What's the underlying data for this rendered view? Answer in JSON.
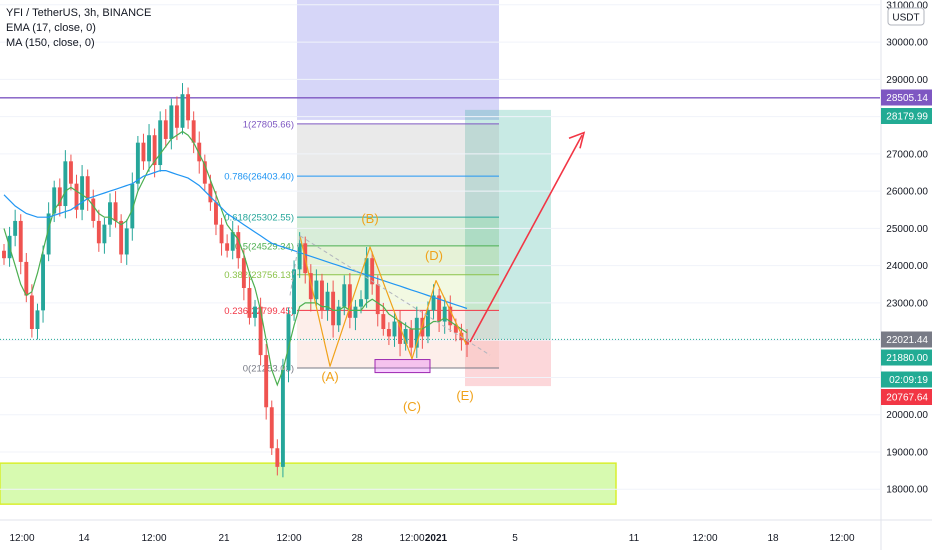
{
  "header": {
    "symbol_line": "YFI / TetherUS, 3h, BINANCE",
    "ema_line": "EMA (17, close, 0)",
    "ma_line": "MA (150, close, 0)"
  },
  "currency_button": "USDT",
  "chart_data": {
    "type": "candlestick",
    "title": "YFI / TetherUS, 3h, BINANCE",
    "ylim": [
      17300,
      31000
    ],
    "y_ticks": [
      18000,
      19000,
      20000,
      21000,
      22000,
      23000,
      24000,
      25000,
      26000,
      27000,
      28000,
      29000,
      30000,
      31000
    ],
    "y_tick_labels": [
      "18000.00",
      "19000.00",
      "20000.00",
      "21000.00",
      "22000.00",
      "23000.00",
      "24000.00",
      "25000.00",
      "26000.00",
      "27000.00",
      "28000.00",
      "29000.00",
      "30000.00",
      "31000.00"
    ],
    "x_tick_labels": [
      "12:00",
      "14",
      "12:00",
      "21",
      "12:00",
      "28",
      "12:00",
      "2021",
      "5",
      "11",
      "12:00",
      "18",
      "12:00"
    ],
    "legend": [
      "EMA (17, close, 0)",
      "MA (150, close, 0)"
    ],
    "horizontal_line": {
      "value": 28505.14,
      "color": "#7e57c2"
    },
    "price_labels": [
      {
        "text": "28505.14",
        "value": 28505.14,
        "color": "#7e57c2"
      },
      {
        "text": "28179.99",
        "value": 28179.99,
        "color": "#22ab94"
      },
      {
        "text": "22021.44",
        "value": 22021.44,
        "color": "#787b86"
      },
      {
        "text": "21880.00",
        "value": 21880.0,
        "color": "#22ab94"
      },
      {
        "text": "02:09:19",
        "value": 21480,
        "color": "#22ab94"
      },
      {
        "text": "20767.64",
        "value": 20767.64,
        "color": "#f23645"
      }
    ],
    "fibonacci": {
      "levels": [
        {
          "ratio": "1",
          "value": 27805.66,
          "label": "1(27805.66)",
          "color": "#7e57c2"
        },
        {
          "ratio": "0.786",
          "value": 26403.4,
          "label": "0.786(26403.40)",
          "color": "#2196f3"
        },
        {
          "ratio": "0.618",
          "value": 25302.55,
          "label": "0.618(25302.55)",
          "color": "#26a69a"
        },
        {
          "ratio": "0.5",
          "value": 24529.34,
          "label": "0.5(24529.34)",
          "color": "#4caf50"
        },
        {
          "ratio": "0.382",
          "value": 23756.13,
          "label": "0.382(23756.13)",
          "color": "#8bc34a"
        },
        {
          "ratio": "0.236",
          "value": 22799.45,
          "label": "0.236(22799.45)",
          "color": "#f23645"
        },
        {
          "ratio": "0",
          "value": 21253.03,
          "label": "0(21253.03)",
          "color": "#787b86"
        }
      ]
    },
    "wave_labels": [
      "(A)",
      "(B)",
      "(C)",
      "(D)",
      "(E)"
    ],
    "support_zone": [
      17600,
      18700
    ],
    "position": {
      "entry": 22021.44,
      "target": 28179.99,
      "stop": 20767.64
    },
    "series": [
      {
        "name": "YFI / TetherUS",
        "type": "candlestick",
        "up_color": "#26a69a",
        "down_color": "#ef5350",
        "close_path": [
          24200,
          24800,
          25200,
          24100,
          23200,
          22300,
          22800,
          24300,
          25400,
          26100,
          25600,
          26800,
          26200,
          25500,
          26400,
          25800,
          25200,
          24600,
          25100,
          25700,
          25200,
          24300,
          25000,
          26200,
          27300,
          26800,
          27500,
          26700,
          27900,
          27400,
          28300,
          27700,
          28600,
          27900,
          27300,
          26800,
          26200,
          25700,
          25100,
          24600,
          24400,
          24900,
          24200,
          23400,
          22600,
          22900,
          21600,
          20200,
          19100,
          18600,
          21200,
          22700,
          23900,
          24600,
          23800,
          23100,
          23600,
          22800,
          23300,
          22400,
          22900,
          23500,
          22600,
          22900,
          23100,
          24200,
          23500,
          22700,
          22300,
          22100,
          22500,
          21900,
          22300,
          21800,
          22600,
          22100,
          22800,
          23200,
          22500,
          22900,
          22400,
          22200,
          22000,
          21880
        ]
      },
      {
        "name": "EMA (17, close, 0)",
        "type": "line",
        "color": "#4caf50",
        "values": [
          25000,
          24500,
          24000,
          23500,
          23200,
          23300,
          23800,
          24400,
          25000,
          25500,
          25700,
          26000,
          26100,
          26000,
          25900,
          25800,
          25600,
          25400,
          25300,
          25300,
          25200,
          25100,
          25200,
          25500,
          26000,
          26300,
          26600,
          26800,
          27000,
          27200,
          27400,
          27500,
          27600,
          27500,
          27300,
          27000,
          26700,
          26300,
          25900,
          25500,
          25100,
          24900,
          24700,
          24300,
          23800,
          23400,
          22800,
          22000,
          21200,
          20800,
          21200,
          21800,
          22400,
          22900,
          23000,
          23000,
          23000,
          22900,
          22900,
          22800,
          22800,
          22900,
          22800,
          22800,
          22800,
          23000,
          23100,
          23000,
          22900,
          22700,
          22600,
          22500,
          22400,
          22300,
          22300,
          22300,
          22400,
          22500,
          22500,
          22600,
          22500,
          22400,
          22300,
          22200
        ]
      },
      {
        "name": "MA (150, close, 0)",
        "type": "line",
        "color": "#2196f3",
        "values": [
          25900,
          25750,
          25600,
          25500,
          25400,
          25350,
          25300,
          25300,
          25300,
          25350,
          25400,
          25450,
          25500,
          25600,
          25700,
          25800,
          25850,
          25900,
          25950,
          26000,
          26050,
          26100,
          26150,
          26200,
          26300,
          26400,
          26450,
          26500,
          26550,
          26550,
          26500,
          26450,
          26400,
          26350,
          26250,
          26150,
          26000,
          25850,
          25700,
          25550,
          25400,
          25300,
          25200,
          25100,
          25000,
          24900,
          24800,
          24700,
          24600,
          24550,
          24500,
          24450,
          24400,
          24350,
          24300,
          24250,
          24200,
          24150,
          24100,
          24050,
          24000,
          23950,
          23900,
          23850,
          23800,
          23750,
          23700,
          23650,
          23600,
          23550,
          23500,
          23450,
          23400,
          23350,
          23300,
          23250,
          23200,
          23150,
          23100,
          23050,
          23000,
          22950,
          22900,
          22850
        ]
      }
    ]
  }
}
